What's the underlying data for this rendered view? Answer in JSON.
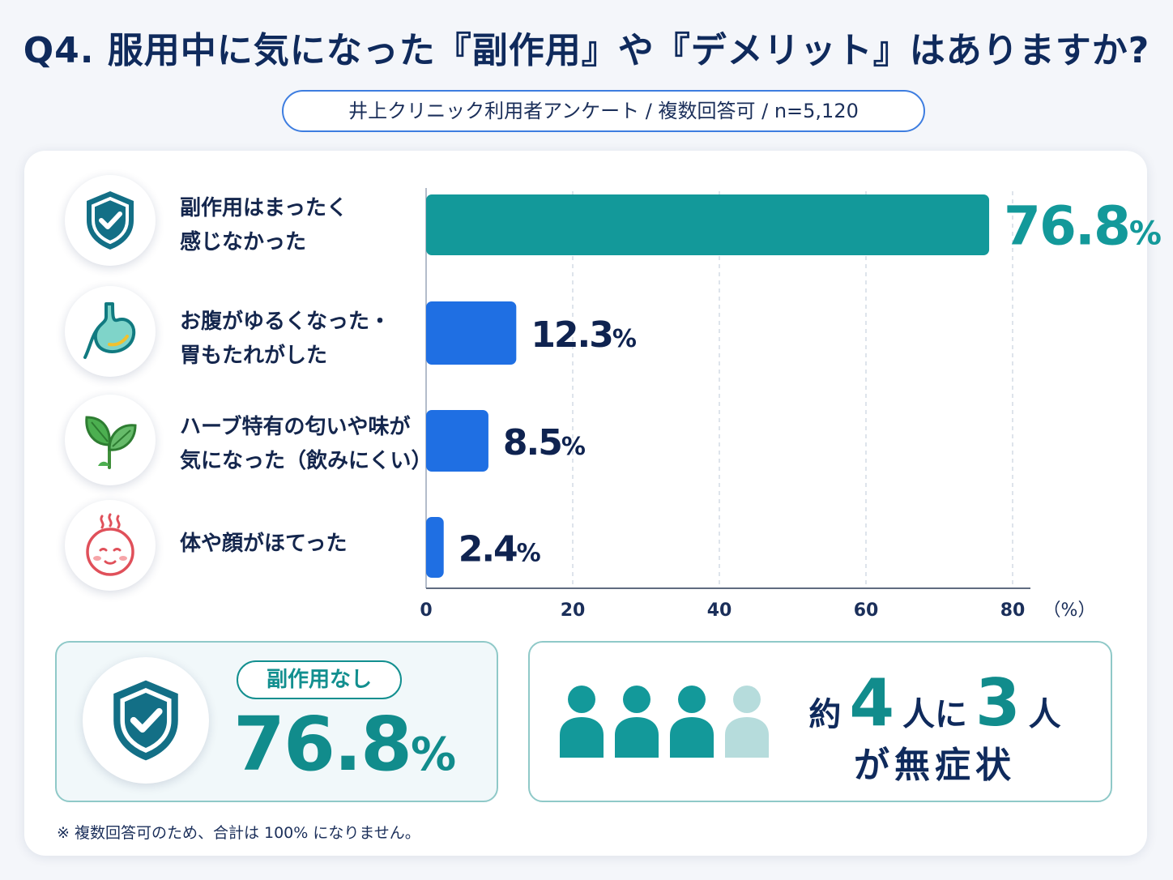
{
  "title": "Q4. 服用中に気になった『副作用』や『デメリット』はありますか?",
  "subtitle": "井上クリニック利用者アンケート / 複数回答可 / n=5,120",
  "chart_data": {
    "type": "bar",
    "orientation": "horizontal",
    "categories": [
      {
        "line1": "副作用はまったく",
        "line2": "感じなかった"
      },
      {
        "line1": "お腹がゆるくなった・",
        "line2": "胃もたれがした"
      },
      {
        "line1": "ハーブ特有の匂いや味が",
        "line2": "気になった（飲みにくい）"
      },
      {
        "line1": "体や顔がほてった",
        "line2": ""
      }
    ],
    "values": [
      76.8,
      12.3,
      8.5,
      2.4
    ],
    "value_labels": [
      {
        "num": "76.8",
        "unit": "%"
      },
      {
        "num": "12.3",
        "unit": "%"
      },
      {
        "num": "8.5",
        "unit": "%"
      },
      {
        "num": "2.4",
        "unit": "%"
      }
    ],
    "x_ticks": [
      "0",
      "20",
      "40",
      "60",
      "80"
    ],
    "x_unit": "（%）",
    "xlim": [
      0,
      80
    ],
    "grid": "vertical dashed",
    "colors": {
      "highlight": "#13999a",
      "bar": "#1f6fe3"
    }
  },
  "icons": [
    "shield-check-icon",
    "stomach-icon",
    "herb-leaf-icon",
    "flushed-face-icon"
  ],
  "summary_left": {
    "pill": "副作用なし",
    "value": "76.8",
    "unit": "%"
  },
  "summary_right": {
    "prefix": "約",
    "num1": "4",
    "mid": "人に",
    "num2": "3",
    "suffix": "人",
    "line2": "が無症状",
    "people_total": 4,
    "people_highlighted": 3
  },
  "footnote": "※ 複数回答可のため、合計は 100% になりません。",
  "colors": {
    "navy": "#0f2a5c",
    "teal": "#13999a",
    "blue": "#1f6fe3",
    "light_teal": "#b6dcdc"
  }
}
